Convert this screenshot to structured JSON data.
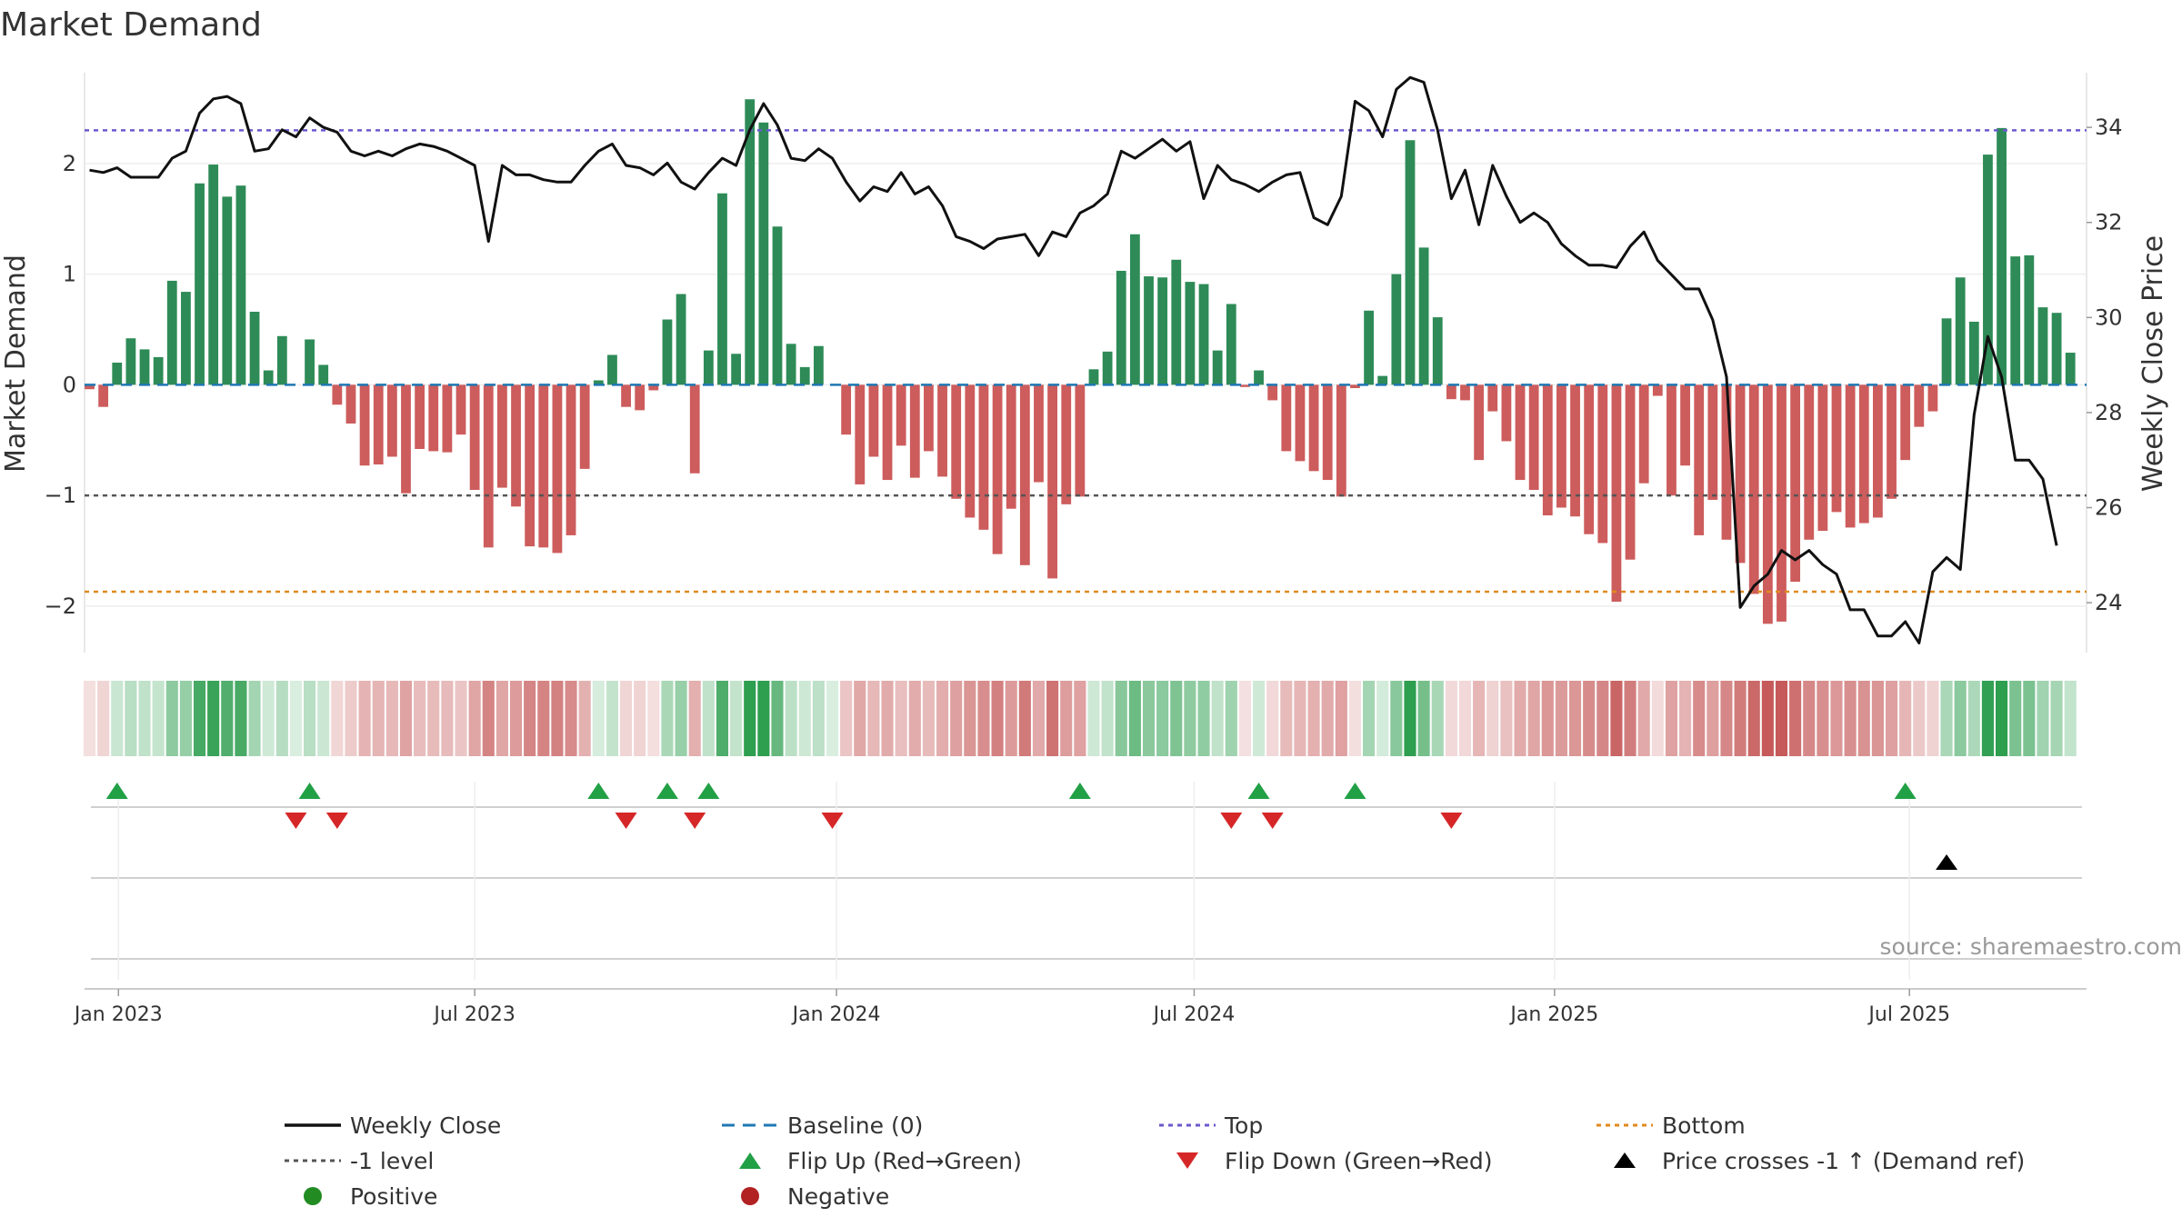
{
  "colors": {
    "positive": "#2e8b57",
    "negative": "#cd5c5c",
    "price": "#111111",
    "baseline": "#1f77b4",
    "top": "#6a5acd",
    "minus1": "#555555",
    "bottom": "#e08a1e",
    "flip_up": "#22a046",
    "flip_down": "#d62728",
    "cross": "#000000",
    "positive_dot": "#228b22",
    "negative_dot": "#b22222"
  },
  "chart_data": {
    "type": "bar",
    "title": "Market Demand",
    "ylabel": "Market Demand",
    "y2label": "Weekly Close Price",
    "source": "source: sharemaestro.com",
    "ylim": [
      -2.42,
      2.82
    ],
    "y2lim": [
      22.95,
      35.15
    ],
    "yticks": [
      "2",
      "1",
      "0",
      "−1",
      "−2"
    ],
    "ytick_values": [
      2,
      1,
      0,
      -1,
      -2
    ],
    "y2ticks": [
      "34",
      "32",
      "30",
      "28",
      "26",
      "24"
    ],
    "y2tick_values": [
      34,
      32,
      30,
      28,
      26,
      24
    ],
    "top_level": 2.3,
    "minus1_level": -1.0,
    "bottom_level": -1.87,
    "start_week_index": 0,
    "date_ticks": [
      {
        "label": "Jan 2023",
        "week": 2.1
      },
      {
        "label": "Jul 2023",
        "week": 28.0
      },
      {
        "label": "Jan 2024",
        "week": 54.3
      },
      {
        "label": "Jul 2024",
        "week": 80.3
      },
      {
        "label": "Jan 2025",
        "week": 106.5
      },
      {
        "label": "Jul 2025",
        "week": 132.3
      }
    ],
    "demand": [
      -0.04,
      -0.2,
      0.2,
      0.42,
      0.32,
      0.25,
      0.94,
      0.84,
      1.82,
      1.99,
      1.7,
      1.8,
      0.66,
      0.13,
      0.44,
      0,
      0.41,
      0.18,
      -0.18,
      -0.35,
      -0.73,
      -0.72,
      -0.65,
      -0.98,
      -0.58,
      -0.6,
      -0.61,
      -0.45,
      -0.95,
      -1.47,
      -0.93,
      -1.1,
      -1.46,
      -1.47,
      -1.52,
      -1.36,
      -0.76,
      0.04,
      0.27,
      -0.2,
      -0.23,
      -0.05,
      0.59,
      0.82,
      -0.8,
      0.31,
      1.73,
      0.28,
      2.58,
      2.37,
      1.43,
      0.37,
      0.16,
      0.35,
      0,
      -0.45,
      -0.9,
      -0.65,
      -0.86,
      -0.55,
      -0.84,
      -0.6,
      -0.83,
      -1.03,
      -1.2,
      -1.31,
      -1.53,
      -1.12,
      -1.63,
      -0.88,
      -1.75,
      -1.08,
      -1.01,
      0.14,
      0.3,
      1.03,
      1.36,
      0.98,
      0.97,
      1.13,
      0.93,
      0.91,
      0.31,
      0.73,
      -0.02,
      0.13,
      -0.14,
      -0.6,
      -0.69,
      -0.78,
      -0.86,
      -1.01,
      -0.03,
      0.67,
      0.08,
      1.0,
      2.21,
      1.24,
      0.61,
      -0.13,
      -0.14,
      -0.68,
      -0.24,
      -0.51,
      -0.86,
      -0.95,
      -1.18,
      -1.11,
      -1.19,
      -1.35,
      -1.43,
      -1.96,
      -1.58,
      -0.89,
      -0.1,
      -1.0,
      -0.73,
      -1.36,
      -1.04,
      -1.4,
      -1.61,
      -1.89,
      -2.16,
      -2.14,
      -1.78,
      -1.4,
      -1.32,
      -1.15,
      -1.29,
      -1.25,
      -1.2,
      -1.03,
      -0.68,
      -0.38,
      -0.24,
      0.6,
      0.97,
      0.57,
      2.08,
      2.32,
      1.16,
      1.17,
      0.7,
      0.65,
      0.29
    ],
    "price": [
      33.1,
      33.05,
      33.15,
      32.95,
      32.95,
      32.95,
      33.35,
      33.5,
      34.3,
      34.6,
      34.65,
      34.5,
      33.5,
      33.55,
      33.95,
      33.8,
      34.2,
      34.0,
      33.9,
      33.5,
      33.4,
      33.5,
      33.4,
      33.55,
      33.65,
      33.6,
      33.5,
      33.35,
      33.2,
      31.6,
      33.2,
      33.0,
      33.0,
      32.9,
      32.85,
      32.85,
      33.2,
      33.5,
      33.65,
      33.2,
      33.15,
      33.0,
      33.25,
      32.85,
      32.7,
      33.05,
      33.35,
      33.2,
      33.95,
      34.5,
      34.05,
      33.35,
      33.3,
      33.55,
      33.35,
      32.85,
      32.45,
      32.75,
      32.65,
      33.05,
      32.6,
      32.75,
      32.35,
      31.7,
      31.6,
      31.45,
      31.65,
      31.7,
      31.75,
      31.3,
      31.8,
      31.7,
      32.2,
      32.35,
      32.6,
      33.5,
      33.35,
      33.55,
      33.75,
      33.5,
      33.7,
      32.5,
      33.2,
      32.9,
      32.8,
      32.65,
      32.85,
      33.0,
      33.05,
      32.1,
      31.95,
      32.55,
      34.55,
      34.35,
      33.8,
      34.8,
      35.05,
      34.95,
      33.95,
      32.5,
      33.1,
      31.95,
      33.2,
      32.55,
      32.0,
      32.2,
      32.0,
      31.55,
      31.3,
      31.1,
      31.1,
      31.05,
      31.5,
      31.8,
      31.2,
      30.9,
      30.6,
      30.6,
      29.95,
      28.75,
      23.9,
      24.35,
      24.6,
      25.1,
      24.9,
      25.1,
      24.8,
      24.6,
      23.85,
      23.85,
      23.3,
      23.3,
      23.6,
      23.15,
      24.65,
      24.95,
      24.7,
      27.95,
      29.6,
      28.75,
      27.0,
      27.0,
      26.6,
      25.2
    ],
    "flip_up_weeks": [
      2,
      16,
      37,
      42,
      45,
      72,
      85,
      92,
      132
    ],
    "flip_down_weeks": [
      15,
      18,
      39,
      44,
      54,
      83,
      86,
      99
    ],
    "cross_up_weeks": [
      135
    ],
    "legend": [
      [
        "Weekly Close",
        "Baseline (0)",
        "Top",
        "Bottom"
      ],
      [
        "-1 level",
        "Flip Up (Red→Green)",
        "Flip Down (Green→Red)",
        "Price crosses -1 ↑ (Demand ref)"
      ],
      [
        "Positive",
        "Negative"
      ]
    ]
  }
}
